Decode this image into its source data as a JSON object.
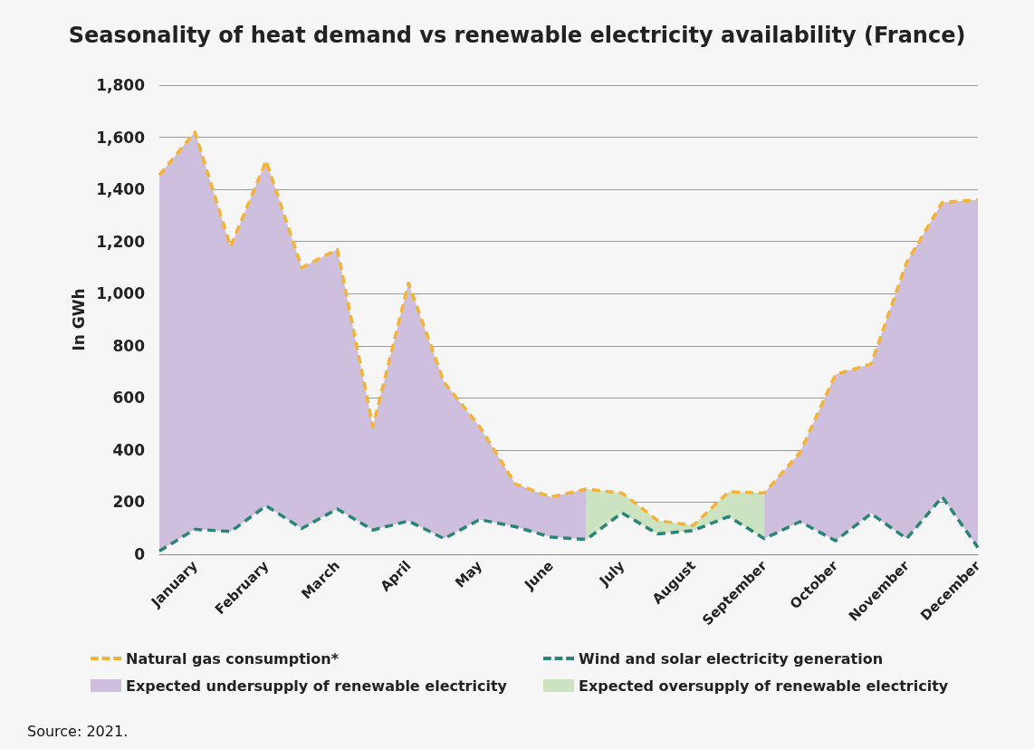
{
  "chart_data": {
    "type": "line",
    "title": "Seasonality of heat demand vs renewable electricity availability (France)",
    "ylabel": "In GWh",
    "categories": [
      null,
      "January",
      null,
      "February",
      null,
      "March",
      null,
      "April",
      null,
      "May",
      null,
      "June",
      null,
      "July",
      null,
      "August",
      null,
      "September",
      null,
      "October",
      null,
      "November",
      null,
      "December"
    ],
    "series": [
      {
        "name": "Natural gas consumption*",
        "color": "#f5b335",
        "values": [
          1455,
          1620,
          1180,
          1510,
          1100,
          1170,
          490,
          1040,
          660,
          490,
          270,
          220,
          250,
          235,
          130,
          110,
          240,
          235,
          390,
          690,
          730,
          1120,
          1350,
          1360
        ]
      },
      {
        "name": "Wind and solar electricity generation",
        "color": "#2a8577",
        "values": [
          12,
          96,
          87,
          186,
          99,
          174,
          93,
          128,
          60,
          133,
          106,
          66,
          57,
          159,
          78,
          91,
          145,
          60,
          125,
          52,
          156,
          60,
          220,
          26
        ]
      },
      {
        "type": "area",
        "name": "Expected undersupply of renewable electricity",
        "color": "#cdbfdd",
        "values": [
          1455,
          1620,
          1180,
          1510,
          1100,
          1170,
          490,
          1040,
          660,
          490,
          270,
          220,
          250,
          null,
          null,
          null,
          null,
          235,
          390,
          690,
          730,
          1120,
          1350,
          1360
        ]
      },
      {
        "type": "area",
        "name": "Expected oversupply of renewable electricity",
        "color": "#cbe3c0",
        "values": [
          null,
          null,
          null,
          null,
          null,
          null,
          null,
          null,
          null,
          null,
          null,
          null,
          250,
          235,
          130,
          110,
          240,
          235,
          null,
          null,
          null,
          null,
          null,
          null
        ]
      }
    ],
    "ylim": [
      0,
      1800
    ],
    "yticks": [
      0,
      200,
      400,
      600,
      800,
      {
        "value": 1000,
        "label": "1,000"
      },
      {
        "value": 1200,
        "label": "1,200"
      },
      {
        "value": 1400,
        "label": "1,400"
      },
      {
        "value": 1600,
        "label": "1,600"
      },
      {
        "value": 1800,
        "label": "1,800"
      }
    ],
    "grid": "y",
    "legend": "bottom",
    "line_style": "dashed",
    "marker": "none",
    "annotations": [
      "Source: 2021."
    ]
  }
}
